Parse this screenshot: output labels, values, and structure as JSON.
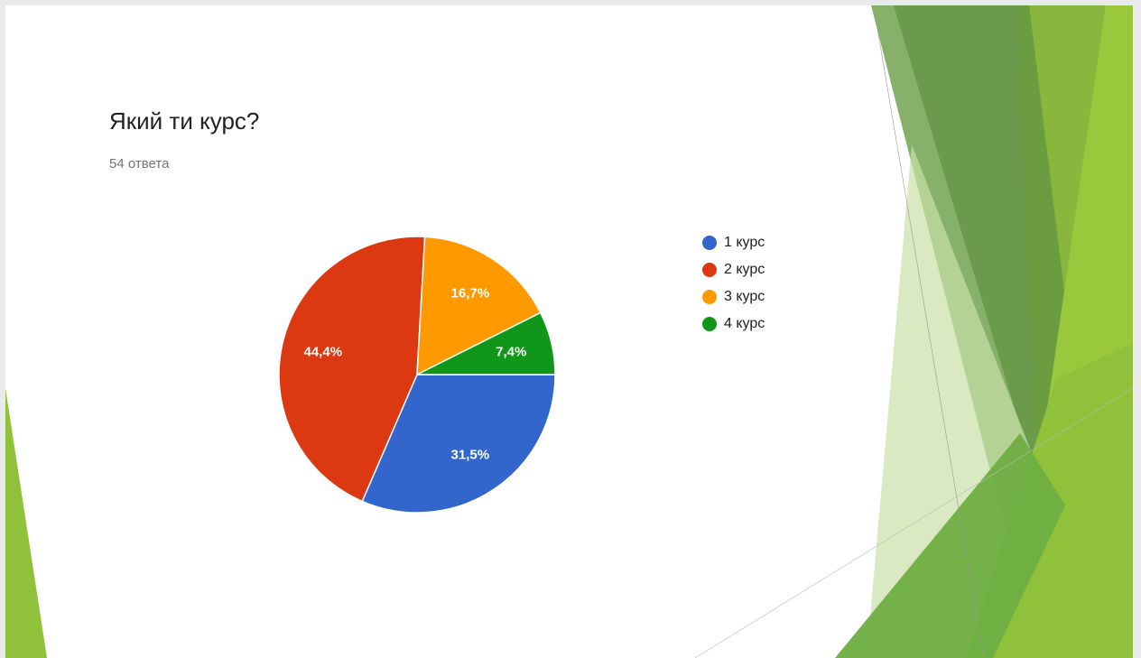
{
  "chart_data": {
    "type": "pie",
    "title": "Який ти курс?",
    "subtitle": "54 ответа",
    "categories": [
      "1 курс",
      "2 курс",
      "3 курс",
      "4 курс"
    ],
    "values": [
      31.5,
      44.4,
      16.7,
      7.4
    ],
    "value_labels": [
      "31,5%",
      "44,4%",
      "16,7%",
      "7,4%"
    ],
    "colors": [
      "#3366cc",
      "#dc3912",
      "#ff9900",
      "#109618"
    ],
    "legend": "right"
  }
}
